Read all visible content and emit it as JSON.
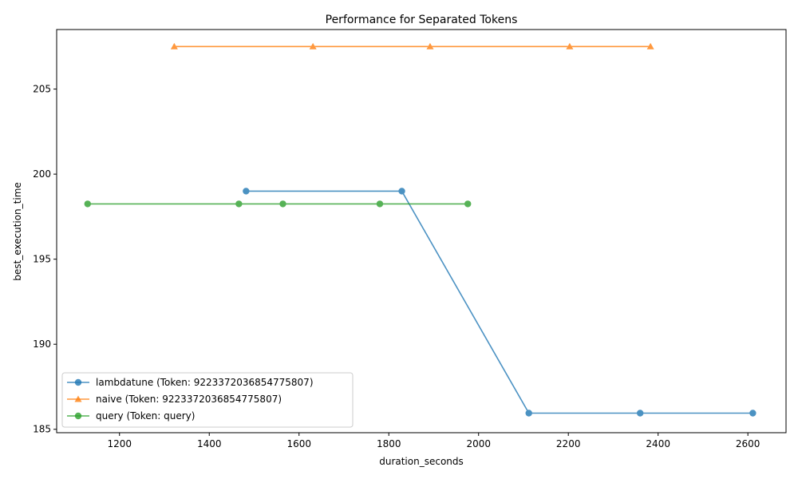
{
  "chart_data": {
    "type": "line",
    "title": "Performance for Separated Tokens",
    "xlabel": "duration_seconds",
    "ylabel": "best_execution_time",
    "xlim": [
      1060,
      2685
    ],
    "ylim": [
      184.8,
      208.5
    ],
    "xticks": [
      1200,
      1400,
      1600,
      1800,
      2000,
      2200,
      2400,
      2600
    ],
    "yticks": [
      185,
      190,
      195,
      200,
      205
    ],
    "grid": false,
    "legend_position": "lower-left",
    "series": [
      {
        "name": "lambdatune (Token: 9223372036854775807)",
        "color": "#1f77b4",
        "marker": "circle",
        "x": [
          1482,
          1829,
          2112,
          2360,
          2611
        ],
        "y": [
          199.0,
          199.0,
          185.95,
          185.95,
          185.95
        ]
      },
      {
        "name": "naive (Token: 9223372036854775807)",
        "color": "#ff7f0e",
        "marker": "triangle",
        "x": [
          1322,
          1631,
          1892,
          2203,
          2383
        ],
        "y": [
          207.5,
          207.5,
          207.5,
          207.5,
          207.5
        ]
      },
      {
        "name": "query (Token: query)",
        "color": "#2ca02c",
        "marker": "circle",
        "x": [
          1129,
          1466,
          1564,
          1780,
          1976
        ],
        "y": [
          198.25,
          198.25,
          198.25,
          198.25,
          198.25
        ]
      }
    ]
  }
}
